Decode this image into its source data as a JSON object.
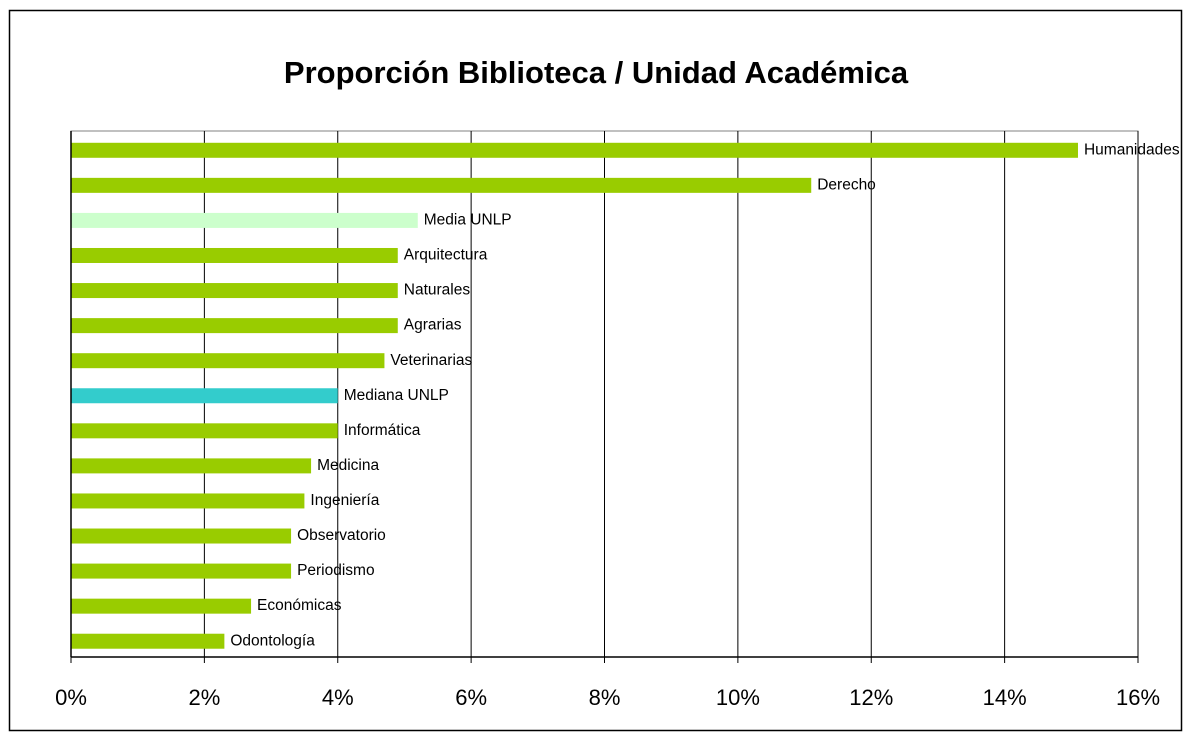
{
  "chart_data": {
    "type": "bar",
    "orientation": "horizontal",
    "title": "Proporción Biblioteca / Unidad Académica",
    "categories": [
      "Humanidades",
      "Derecho",
      "Media UNLP",
      "Arquitectura",
      "Naturales",
      "Agrarias",
      "Veterinarias",
      "Mediana UNLP",
      "Informática",
      "Medicina",
      "Ingeniería",
      "Observatorio",
      "Periodismo",
      "Económicas",
      "Odontología"
    ],
    "values": [
      15.1,
      11.1,
      5.2,
      4.9,
      4.9,
      4.9,
      4.7,
      4.0,
      4.0,
      3.6,
      3.5,
      3.3,
      3.3,
      2.7,
      2.3
    ],
    "colors": [
      "#99cc00",
      "#99cc00",
      "#ccffcc",
      "#99cc00",
      "#99cc00",
      "#99cc00",
      "#99cc00",
      "#33cccc",
      "#99cc00",
      "#99cc00",
      "#99cc00",
      "#99cc00",
      "#99cc00",
      "#99cc00",
      "#99cc00"
    ],
    "xlim": [
      0,
      16
    ],
    "xticks": [
      {
        "value": 0,
        "label": "0%"
      },
      {
        "value": 2,
        "label": "2%"
      },
      {
        "value": 4,
        "label": "4%"
      },
      {
        "value": 6,
        "label": "6%"
      },
      {
        "value": 8,
        "label": "8%"
      },
      {
        "value": 10,
        "label": "10%"
      },
      {
        "value": 12,
        "label": "12%"
      },
      {
        "value": 14,
        "label": "14%"
      },
      {
        "value": 16,
        "label": "16%"
      }
    ],
    "grid": true
  }
}
